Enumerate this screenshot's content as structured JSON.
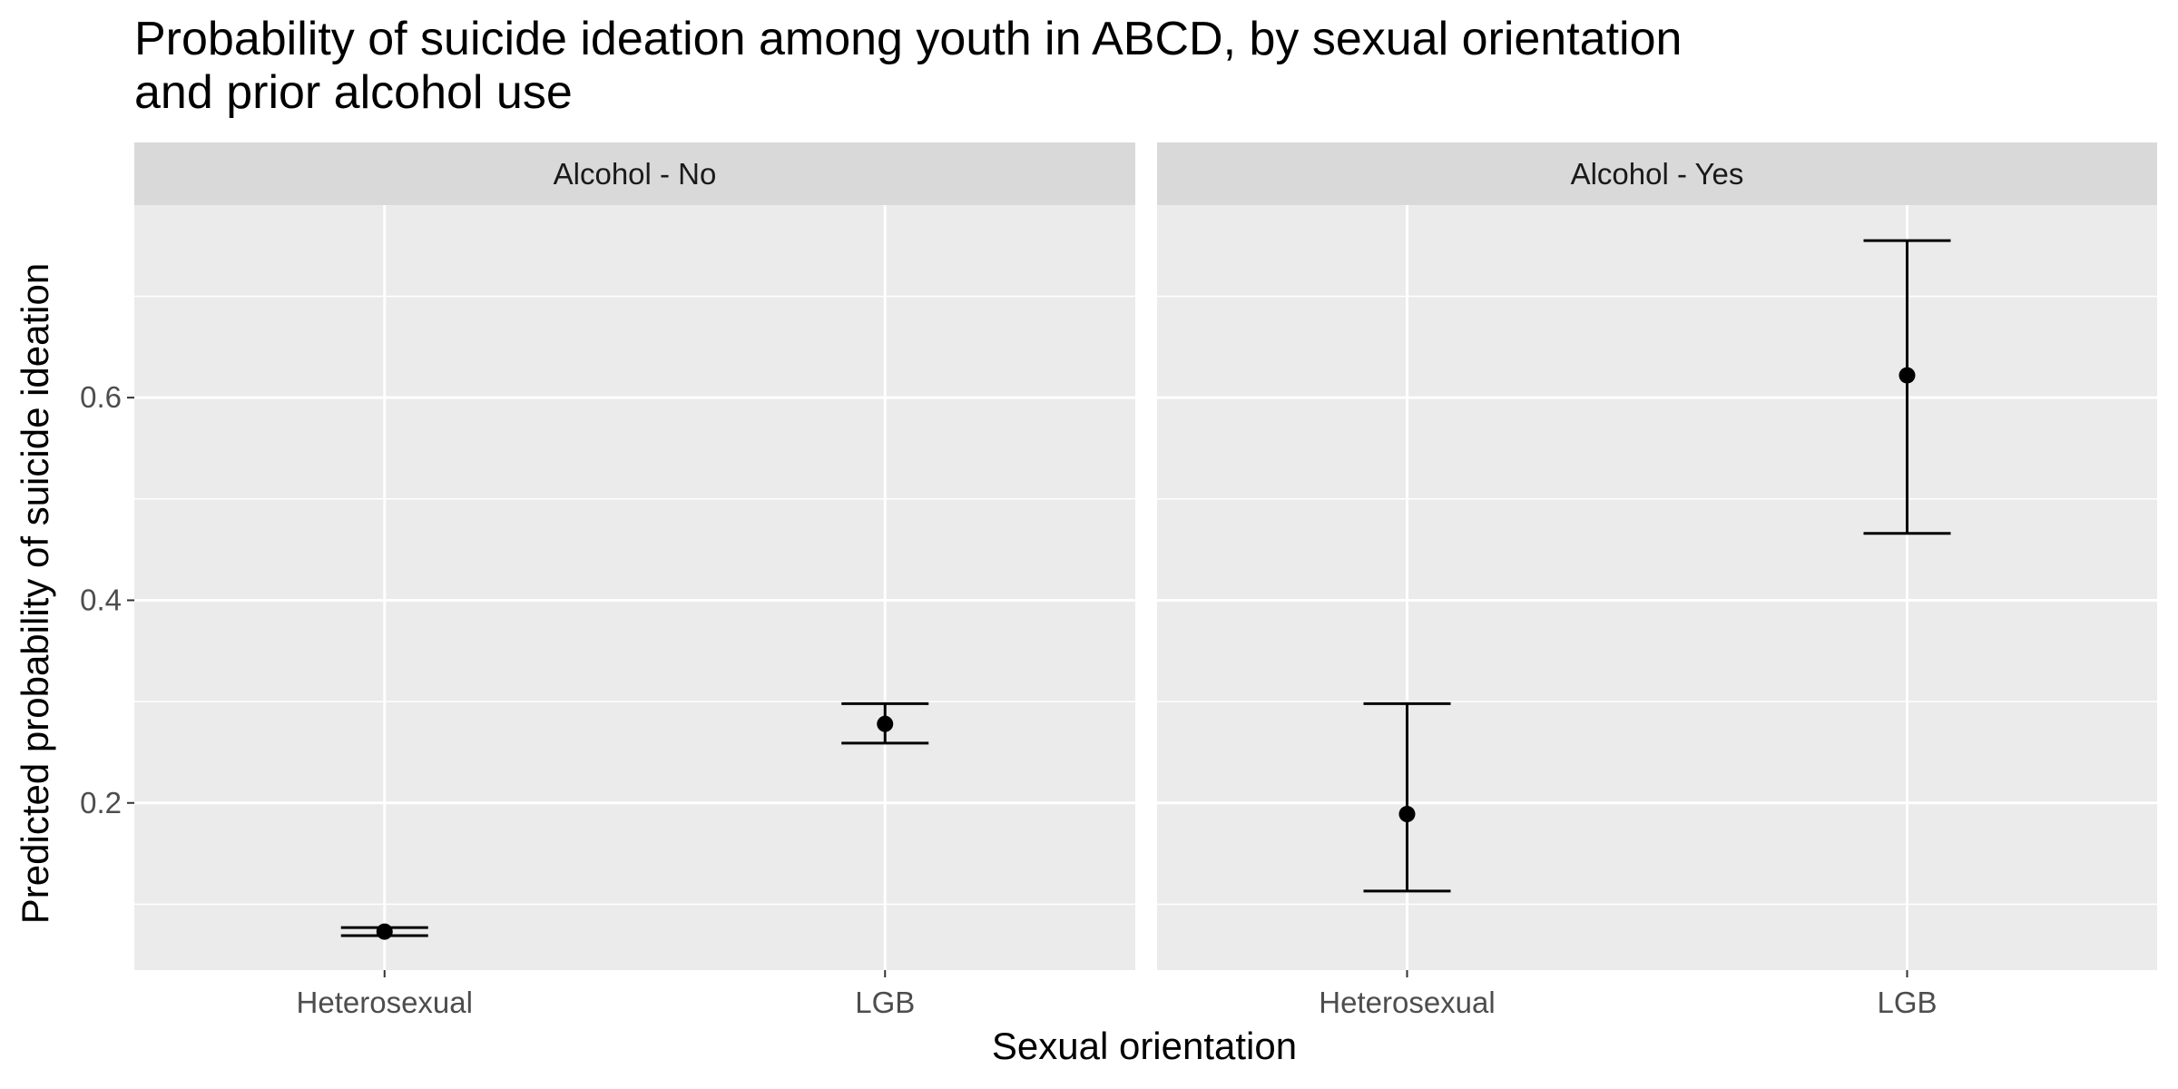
{
  "chart_data": {
    "type": "scatter",
    "subtype": "point-errorbar-faceted",
    "title_line1": "Probability of suicide ideation among youth in ABCD, by sexual orientation",
    "title_line2": "and prior alcohol use",
    "xlabel": "Sexual orientation",
    "ylabel": "Predicted probability of suicide ideation",
    "categories": [
      "Heterosexual",
      "LGB"
    ],
    "ylim": [
      0.035,
      0.79
    ],
    "yticks": [
      0.2,
      0.4,
      0.6
    ],
    "ytick_labels": [
      "0.2",
      "0.4",
      "0.6"
    ],
    "grid": true,
    "panel_background": "#ebebeb",
    "strip_background": "#d9d9d9",
    "mark_color": "#000000",
    "facets": [
      {
        "label": "Alcohol - No",
        "points": [
          {
            "category": "Heterosexual",
            "estimate": 0.073,
            "lower": 0.069,
            "upper": 0.077
          },
          {
            "category": "LGB",
            "estimate": 0.278,
            "lower": 0.259,
            "upper": 0.298
          }
        ]
      },
      {
        "label": "Alcohol - Yes",
        "points": [
          {
            "category": "Heterosexual",
            "estimate": 0.189,
            "lower": 0.113,
            "upper": 0.298
          },
          {
            "category": "LGB",
            "estimate": 0.622,
            "lower": 0.466,
            "upper": 0.755
          }
        ]
      }
    ]
  }
}
